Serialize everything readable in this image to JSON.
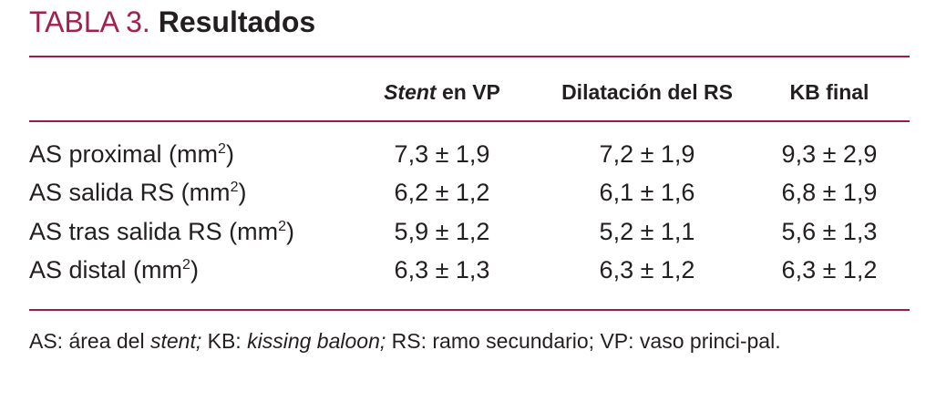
{
  "header": {
    "label": "TABLA 3.",
    "title": "Resultados"
  },
  "table": {
    "columns": [
      [
        "Stent",
        "en VP"
      ],
      "Dilatación del RS",
      "KB final"
    ],
    "rows": [
      [
        [
          "AS proximal (mm",
          "2",
          ")"
        ],
        "7,3 ± 1,9",
        "7,2 ± 1,9",
        "9,3 ± 2,9"
      ],
      [
        [
          "AS salida RS (mm",
          "2",
          ")"
        ],
        "6,2 ± 1,2",
        "6,1 ± 1,6",
        "6,8 ± 1,9"
      ],
      [
        [
          "AS tras salida RS (mm",
          "2",
          ")"
        ],
        "5,9 ± 1,2",
        "5,2 ± 1,1",
        "5,6 ± 1,3"
      ],
      [
        [
          "AS distal (mm",
          "2",
          ")"
        ],
        "6,3 ± 1,3",
        "6,3 ± 1,2",
        "6,3 ± 1,2"
      ]
    ]
  },
  "footnote": [
    "AS: área del ",
    "stent;",
    " KB: ",
    "kissing baloon;",
    " RS: ramo secundario; VP: vaso princi-pal."
  ]
}
